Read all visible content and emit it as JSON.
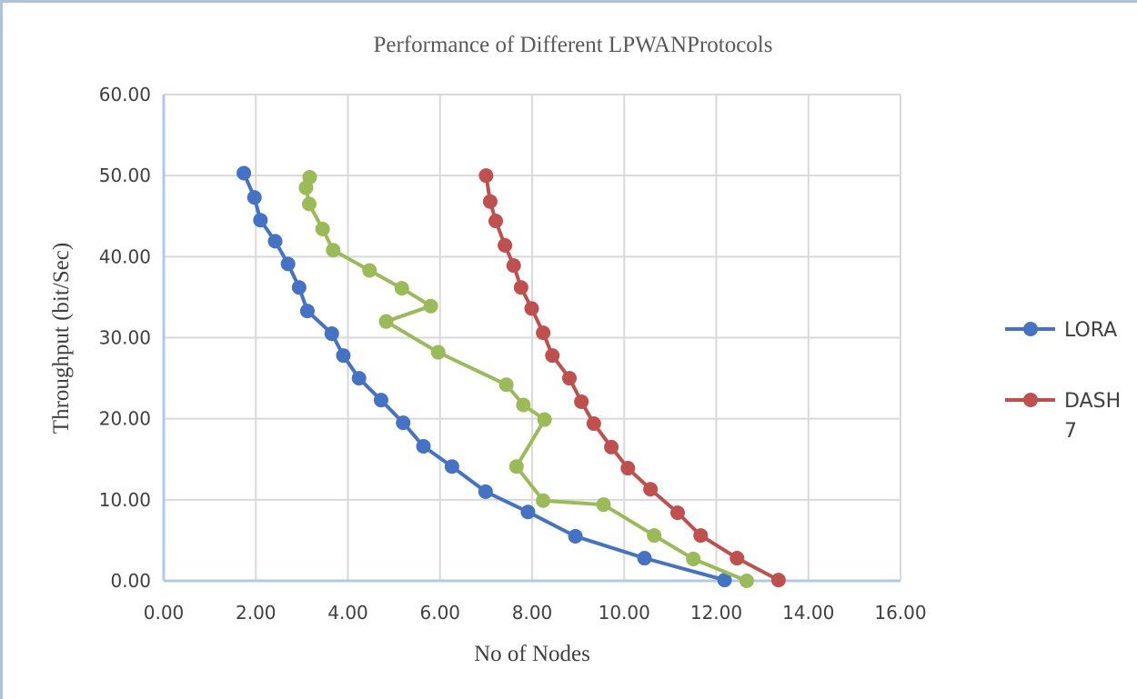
{
  "chart_data": {
    "type": "scatter",
    "title": "Performance of Different LPWANProtocols",
    "xlabel": "No of Nodes",
    "ylabel": "Throughput (bit/Sec)",
    "xlim": [
      0,
      16
    ],
    "ylim": [
      0,
      60
    ],
    "xticks": [
      "0.00",
      "2.00",
      "4.00",
      "6.00",
      "8.00",
      "10.00",
      "12.00",
      "14.00",
      "16.00"
    ],
    "yticks": [
      "0.00",
      "10.00",
      "20.00",
      "30.00",
      "40.00",
      "50.00",
      "60.00"
    ],
    "grid": true,
    "legend_position": "right",
    "series": [
      {
        "name": "LORA",
        "color": "#4472c4",
        "x": [
          1.74,
          1.97,
          2.1,
          2.42,
          2.7,
          2.94,
          3.12,
          3.65,
          3.9,
          4.24,
          4.72,
          5.2,
          5.64,
          6.26,
          6.99,
          7.91,
          8.94,
          10.44,
          12.18
        ],
        "y": [
          50.3,
          47.3,
          44.5,
          41.9,
          39.1,
          36.2,
          33.3,
          30.5,
          27.8,
          25.0,
          22.3,
          19.5,
          16.6,
          14.1,
          11.0,
          8.5,
          5.5,
          2.8,
          0.1
        ]
      },
      {
        "name": "DASH 7",
        "color": "#c0504d",
        "x": [
          7.0,
          7.09,
          7.21,
          7.41,
          7.6,
          7.76,
          7.99,
          8.24,
          8.44,
          8.81,
          9.07,
          9.34,
          9.72,
          10.08,
          10.57,
          11.16,
          11.66,
          12.45,
          13.35
        ],
        "y": [
          50.0,
          46.8,
          44.4,
          41.4,
          38.9,
          36.2,
          33.6,
          30.6,
          27.8,
          25.0,
          22.1,
          19.4,
          16.5,
          13.9,
          11.3,
          8.4,
          5.6,
          2.8,
          0.1
        ]
      },
      {
        "name": "",
        "color": "#9bbb59",
        "x": [
          3.17,
          3.09,
          3.16,
          3.45,
          3.68,
          4.47,
          5.17,
          5.8,
          4.83,
          5.96,
          7.44,
          7.81,
          8.27,
          7.66,
          8.24,
          9.55,
          10.65,
          11.5,
          12.66
        ],
        "y": [
          49.8,
          48.5,
          46.5,
          43.4,
          40.8,
          38.3,
          36.1,
          33.9,
          32.0,
          28.2,
          24.2,
          21.7,
          19.9,
          14.1,
          9.9,
          9.4,
          5.6,
          2.7,
          0.0
        ]
      }
    ]
  }
}
